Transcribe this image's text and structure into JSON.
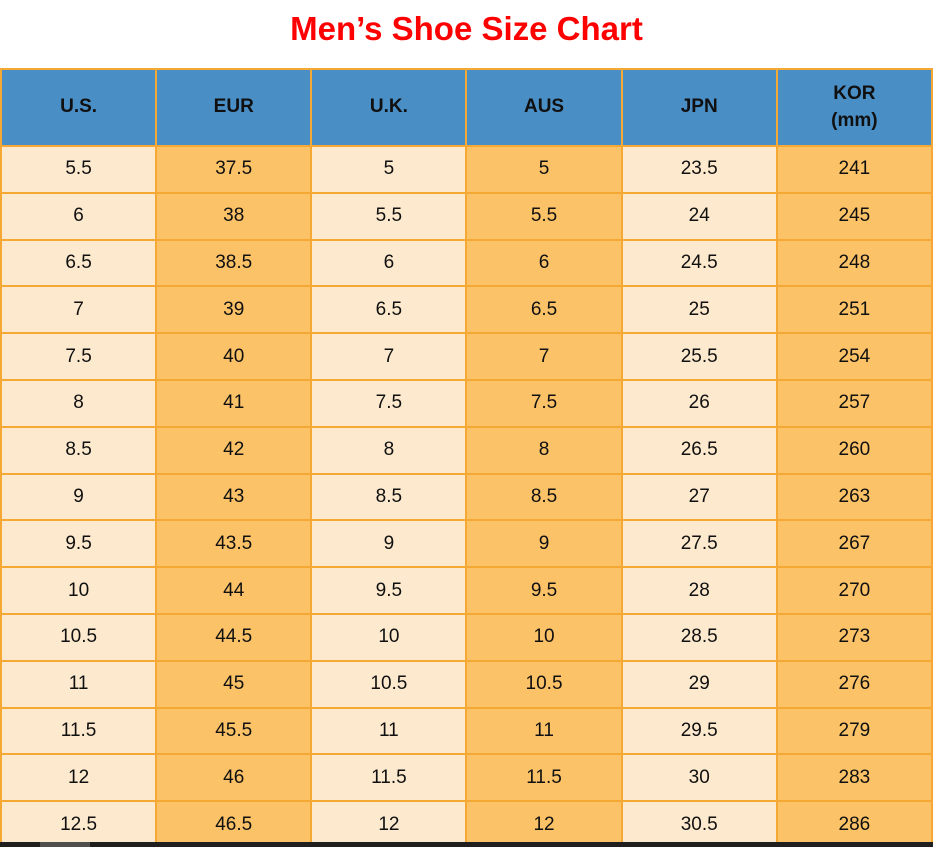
{
  "title": "Men’s Shoe Size Chart",
  "table": {
    "columns": [
      {
        "id": "us",
        "line1": "U.S.",
        "line2": ""
      },
      {
        "id": "eur",
        "line1": "EUR",
        "line2": ""
      },
      {
        "id": "uk",
        "line1": "U.K.",
        "line2": ""
      },
      {
        "id": "aus",
        "line1": "AUS",
        "line2": ""
      },
      {
        "id": "jpn",
        "line1": "JPN",
        "line2": ""
      },
      {
        "id": "kor",
        "line1": "KOR",
        "line2": "(mm)"
      }
    ],
    "rows": [
      [
        "5.5",
        "37.5",
        "5",
        "5",
        "23.5",
        "241"
      ],
      [
        "6",
        "38",
        "5.5",
        "5.5",
        "24",
        "245"
      ],
      [
        "6.5",
        "38.5",
        "6",
        "6",
        "24.5",
        "248"
      ],
      [
        "7",
        "39",
        "6.5",
        "6.5",
        "25",
        "251"
      ],
      [
        "7.5",
        "40",
        "7",
        "7",
        "25.5",
        "254"
      ],
      [
        "8",
        "41",
        "7.5",
        "7.5",
        "26",
        "257"
      ],
      [
        "8.5",
        "42",
        "8",
        "8",
        "26.5",
        "260"
      ],
      [
        "9",
        "43",
        "8.5",
        "8.5",
        "27",
        "263"
      ],
      [
        "9.5",
        "43.5",
        "9",
        "9",
        "27.5",
        "267"
      ],
      [
        "10",
        "44",
        "9.5",
        "9.5",
        "28",
        "270"
      ],
      [
        "10.5",
        "44.5",
        "10",
        "10",
        "28.5",
        "273"
      ],
      [
        "11",
        "45",
        "10.5",
        "10.5",
        "29",
        "276"
      ],
      [
        "11.5",
        "45.5",
        "11",
        "11",
        "29.5",
        "279"
      ],
      [
        "12",
        "46",
        "11.5",
        "11.5",
        "30",
        "283"
      ],
      [
        "12.5",
        "46.5",
        "12",
        "12",
        "30.5",
        "286"
      ]
    ]
  },
  "chart_data": {
    "type": "table",
    "title": "Men’s Shoe Size Chart",
    "columns": [
      "U.S.",
      "EUR",
      "U.K.",
      "AUS",
      "JPN",
      "KOR (mm)"
    ],
    "rows": [
      [
        5.5,
        37.5,
        5,
        5,
        23.5,
        241
      ],
      [
        6,
        38,
        5.5,
        5.5,
        24,
        245
      ],
      [
        6.5,
        38.5,
        6,
        6,
        24.5,
        248
      ],
      [
        7,
        39,
        6.5,
        6.5,
        25,
        251
      ],
      [
        7.5,
        40,
        7,
        7,
        25.5,
        254
      ],
      [
        8,
        41,
        7.5,
        7.5,
        26,
        257
      ],
      [
        8.5,
        42,
        8,
        8,
        26.5,
        260
      ],
      [
        9,
        43,
        8.5,
        8.5,
        27,
        263
      ],
      [
        9.5,
        43.5,
        9,
        9,
        27.5,
        267
      ],
      [
        10,
        44,
        9.5,
        9.5,
        28,
        270
      ],
      [
        10.5,
        44.5,
        10,
        10,
        28.5,
        273
      ],
      [
        11,
        45,
        10.5,
        10.5,
        29,
        276
      ],
      [
        11.5,
        45.5,
        11,
        11,
        29.5,
        279
      ],
      [
        12,
        46,
        11.5,
        11.5,
        30,
        283
      ],
      [
        12.5,
        46.5,
        12,
        12,
        30.5,
        286
      ]
    ]
  },
  "colors": {
    "title_red": "#fe0000",
    "header_blue": "#4a8ec6",
    "cell_cream": "#fce9ce",
    "cell_orange": "#fbc268",
    "grid_orange": "#f5a834",
    "scrollbar_track": "#1f1f1f",
    "scrollbar_thumb": "#4e4e4e"
  }
}
